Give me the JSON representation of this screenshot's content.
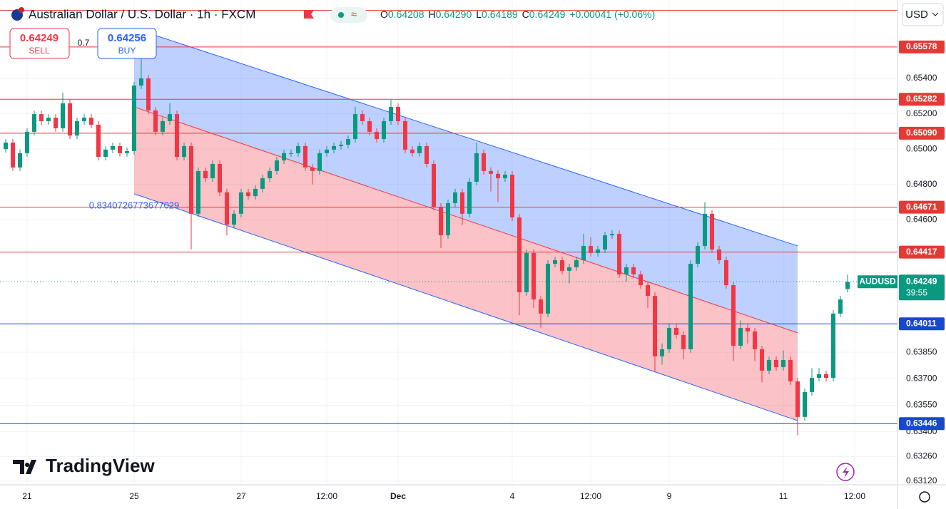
{
  "header": {
    "title": "Australian Dollar / U.S. Dollar · 1h · FXCM",
    "ohlc": [
      {
        "key": "O",
        "value": "0.64208"
      },
      {
        "key": "H",
        "value": "0.64290"
      },
      {
        "key": "L",
        "value": "0.64189"
      },
      {
        "key": "C",
        "value": "0.64249"
      }
    ],
    "change": "+0.00041 (+0.06%)",
    "sell": {
      "price": "0.64249",
      "label": "SELL"
    },
    "spread": "0.7",
    "buy": {
      "price": "0.64256",
      "label": "BUY"
    },
    "currency": "USD",
    "logo": "TradingView"
  },
  "chart_data": {
    "type": "candlestick",
    "categories": [
      null,
      null,
      null,
      "21",
      null,
      null,
      null,
      null,
      null,
      null,
      null,
      null,
      null,
      null,
      null,
      null,
      null,
      null,
      "25",
      null,
      null,
      null,
      null,
      null,
      null,
      null,
      null,
      null,
      null,
      null,
      null,
      null,
      null,
      "27",
      null,
      null,
      null,
      null,
      null,
      null,
      null,
      null,
      null,
      null,
      null,
      "12:00",
      null,
      null,
      null,
      null,
      null,
      null,
      null,
      null,
      null,
      "Dec",
      null,
      null,
      null,
      null,
      null,
      null,
      null,
      null,
      null,
      null,
      null,
      null,
      null,
      null,
      null,
      "4",
      null,
      null,
      null,
      null,
      null,
      null,
      null,
      null,
      null,
      null,
      "12:00",
      null,
      null,
      null,
      null,
      null,
      null,
      null,
      null,
      null,
      null,
      "9",
      null,
      null,
      null,
      null,
      null,
      null,
      null,
      null,
      null,
      null,
      null,
      null,
      null,
      null,
      null,
      "11",
      null,
      null,
      null,
      null,
      null,
      null,
      null,
      null,
      null,
      "12:00"
    ],
    "open": [
      0.65,
      0.65037,
      0.64896,
      0.64977,
      0.65098,
      0.65198,
      0.65158,
      0.65178,
      0.65118,
      0.65259,
      0.65077,
      0.65158,
      0.65178,
      0.65138,
      0.64956,
      0.64997,
      0.65017,
      0.64977,
      0.64989,
      0.6536,
      0.654,
      0.65219,
      0.65098,
      0.65158,
      0.65198,
      0.64956,
      0.65017,
      0.64634,
      0.64876,
      0.64835,
      0.64916,
      0.64755,
      0.64573,
      0.64634,
      0.64755,
      0.64734,
      0.64775,
      0.64835,
      0.64876,
      0.64936,
      0.64977,
      0.64977,
      0.65017,
      0.64896,
      0.64876,
      0.64977,
      0.64997,
      0.65017,
      0.65025,
      0.65057,
      0.65198,
      0.65158,
      0.65098,
      0.65057,
      0.65158,
      0.65239,
      0.65158,
      0.64997,
      0.64977,
      0.65017,
      0.64916,
      0.64674,
      0.64512,
      0.64694,
      0.64755,
      0.64634,
      0.64815,
      0.64977,
      0.64876,
      0.6486,
      0.64835,
      0.64855,
      0.64613,
      0.6419,
      0.64412,
      0.64149,
      0.64069,
      0.64351,
      0.64371,
      0.64311,
      0.64331,
      0.64371,
      0.64452,
      0.64412,
      0.64432,
      0.64512,
      0.6452,
      0.64291,
      0.64331,
      0.64291,
      0.6423,
      0.64169,
      0.63827,
      0.63867,
      0.63988,
      0.63948,
      0.63867,
      0.64351,
      0.64452,
      0.64634,
      0.64432,
      0.64371,
      0.6423,
      0.63887,
      0.63988,
      0.63968,
      0.63867,
      0.63746,
      0.63806,
      0.63766,
      0.63806,
      0.63685,
      0.63484,
      0.63625,
      0.63705,
      0.63726,
      0.63705,
      0.64069,
      0.64208,
      null
    ],
    "high": [
      0.65057,
      0.65057,
      0.64997,
      0.65118,
      0.65218,
      0.65218,
      0.65198,
      0.65198,
      0.65319,
      0.65279,
      0.65178,
      0.65198,
      0.65198,
      0.65158,
      0.65017,
      0.65037,
      0.65037,
      0.65009,
      0.6538,
      0.6552,
      0.6542,
      0.65239,
      0.65178,
      0.6526,
      0.65218,
      0.65037,
      0.65037,
      0.64896,
      0.64896,
      0.64936,
      0.64936,
      0.64775,
      0.64654,
      0.64775,
      0.64775,
      0.64795,
      0.64855,
      0.64896,
      0.64956,
      0.64997,
      0.64997,
      0.65037,
      0.65037,
      0.64916,
      0.64997,
      0.65017,
      0.65037,
      0.65045,
      0.65077,
      0.6524,
      0.65218,
      0.65178,
      0.65118,
      0.65178,
      0.6528,
      0.65259,
      0.65178,
      0.65017,
      0.65037,
      0.65037,
      0.64936,
      0.64694,
      0.64714,
      0.64775,
      0.64775,
      0.64835,
      0.65037,
      0.64997,
      0.64896,
      0.6488,
      0.64875,
      0.64875,
      0.64633,
      0.64432,
      0.64432,
      0.64169,
      0.64371,
      0.64391,
      0.64391,
      0.64351,
      0.64391,
      0.6452,
      0.645,
      0.64452,
      0.64532,
      0.6454,
      0.6454,
      0.64351,
      0.64351,
      0.64311,
      0.6425,
      0.64189,
      0.639,
      0.6401,
      0.64008,
      0.63968,
      0.64371,
      0.64472,
      0.647,
      0.64654,
      0.64452,
      0.64391,
      0.6425,
      0.6403,
      0.64008,
      0.63988,
      0.63887,
      0.63826,
      0.63826,
      0.6386,
      0.63826,
      0.63705,
      0.63645,
      0.6376,
      0.6376,
      0.63746,
      0.64089,
      0.64169,
      0.6429,
      null
    ],
    "low": [
      0.6498,
      0.64876,
      0.64876,
      0.64957,
      0.65078,
      0.65138,
      0.65138,
      0.65098,
      0.65098,
      0.65057,
      0.65057,
      0.65138,
      0.65118,
      0.64936,
      0.64936,
      0.64977,
      0.64957,
      0.64957,
      0.64969,
      0.6534,
      0.65199,
      0.65078,
      0.65078,
      0.65138,
      0.64936,
      0.64936,
      0.64432,
      0.64614,
      0.64815,
      0.64815,
      0.64735,
      0.64512,
      0.64553,
      0.64614,
      0.64714,
      0.64714,
      0.64755,
      0.64815,
      0.64856,
      0.64916,
      0.64957,
      0.64957,
      0.64876,
      0.648,
      0.64856,
      0.64957,
      0.64977,
      0.64997,
      0.65005,
      0.65037,
      0.65138,
      0.65078,
      0.65037,
      0.65037,
      0.65138,
      0.65138,
      0.64977,
      0.64957,
      0.64957,
      0.64896,
      0.64654,
      0.6444,
      0.64492,
      0.64674,
      0.6457,
      0.64614,
      0.64795,
      0.64856,
      0.6476,
      0.647,
      0.64815,
      0.64593,
      0.6406,
      0.6417,
      0.641,
      0.6399,
      0.64049,
      0.64331,
      0.64291,
      0.6424,
      0.64311,
      0.64351,
      0.64392,
      0.64392,
      0.64412,
      0.64492,
      0.64271,
      0.6425,
      0.64271,
      0.6421,
      0.641,
      0.6374,
      0.6378,
      0.63847,
      0.63928,
      0.6381,
      0.63847,
      0.64331,
      0.64432,
      0.64412,
      0.64351,
      0.6421,
      0.638,
      0.63867,
      0.639,
      0.638,
      0.6368,
      0.63726,
      0.63746,
      0.63746,
      0.63665,
      0.6338,
      0.63464,
      0.63605,
      0.63685,
      0.63685,
      0.63685,
      0.64049,
      0.64189,
      null
    ],
    "close": [
      0.65037,
      0.64896,
      0.64977,
      0.65098,
      0.65198,
      0.65158,
      0.65178,
      0.65118,
      0.65259,
      0.65077,
      0.65158,
      0.65178,
      0.65138,
      0.64956,
      0.64997,
      0.65017,
      0.64977,
      0.64989,
      0.6536,
      0.654,
      0.65219,
      0.65098,
      0.65158,
      0.65198,
      0.64956,
      0.65017,
      0.64634,
      0.64876,
      0.64835,
      0.64916,
      0.64755,
      0.64573,
      0.64634,
      0.64755,
      0.64734,
      0.64775,
      0.64835,
      0.64876,
      0.64936,
      0.64977,
      0.64977,
      0.65017,
      0.64896,
      0.64876,
      0.64977,
      0.64997,
      0.65017,
      0.65025,
      0.65057,
      0.65198,
      0.65158,
      0.65098,
      0.65057,
      0.65158,
      0.65239,
      0.65158,
      0.64997,
      0.64977,
      0.65017,
      0.64916,
      0.64674,
      0.64512,
      0.64694,
      0.64755,
      0.64634,
      0.64815,
      0.64977,
      0.64876,
      0.6486,
      0.64835,
      0.64855,
      0.64613,
      0.6419,
      0.64412,
      0.64149,
      0.64069,
      0.64351,
      0.64371,
      0.64311,
      0.64331,
      0.64371,
      0.64452,
      0.64412,
      0.64432,
      0.64512,
      0.6452,
      0.64291,
      0.64331,
      0.64291,
      0.6423,
      0.64169,
      0.63827,
      0.63867,
      0.63988,
      0.63948,
      0.63867,
      0.64351,
      0.64452,
      0.64634,
      0.64432,
      0.64371,
      0.6423,
      0.63887,
      0.63988,
      0.63968,
      0.63867,
      0.63746,
      0.63806,
      0.63766,
      0.63806,
      0.63685,
      0.63484,
      0.63625,
      0.63705,
      0.63726,
      0.63705,
      0.64069,
      0.64149,
      0.64249,
      null
    ],
    "up_color": "#089981",
    "down_color": "#f23645",
    "ylim": [
      0.631,
      0.65844
    ],
    "yticks": [
      {
        "value": 0.654,
        "label": "0.65400"
      },
      {
        "value": 0.652,
        "label": "0.65200"
      },
      {
        "value": 0.65,
        "label": "0.65000"
      },
      {
        "value": 0.648,
        "label": "0.64800"
      },
      {
        "value": 0.646,
        "label": "0.64600"
      },
      {
        "value": 0.6385,
        "label": "0.63850"
      },
      {
        "value": 0.637,
        "label": "0.63700"
      },
      {
        "value": 0.6355,
        "label": "0.63550"
      },
      {
        "value": 0.634,
        "label": "0.63400"
      },
      {
        "value": 0.6326,
        "label": "0.63260"
      },
      {
        "value": 0.6312,
        "label": "0.63120"
      }
    ],
    "grid": true,
    "levels": [
      {
        "value": 0.65785,
        "color": "#e53935"
      },
      {
        "value": 0.65578,
        "label": "0.65578",
        "color": "#e53935"
      },
      {
        "value": 0.65282,
        "label": "0.65282",
        "color": "#e53935"
      },
      {
        "value": 0.6509,
        "label": "0.65090",
        "color": "#e53935"
      },
      {
        "value": 0.64671,
        "label": "0.64671",
        "color": "#e53935"
      },
      {
        "value": 0.64417,
        "label": "0.64417",
        "color": "#e53935"
      },
      {
        "value": 0.64011,
        "label": "0.64011",
        "color": "#1848cc"
      },
      {
        "value": 0.63446,
        "label": "0.63446",
        "color": "#1848cc"
      }
    ],
    "channel": {
      "x": [
        18,
        111
      ],
      "upper": [
        0.65683,
        0.64452
      ],
      "middle": [
        0.65239,
        0.6396
      ],
      "lower": [
        0.64747,
        0.63463
      ],
      "label": 0.8340726773677029,
      "upper_color": "#2962ff",
      "lower_color": "#f23645"
    },
    "last": {
      "symbol": "AUDUSD",
      "price": 0.64249,
      "countdown": "39:55",
      "color": "#089981"
    }
  }
}
